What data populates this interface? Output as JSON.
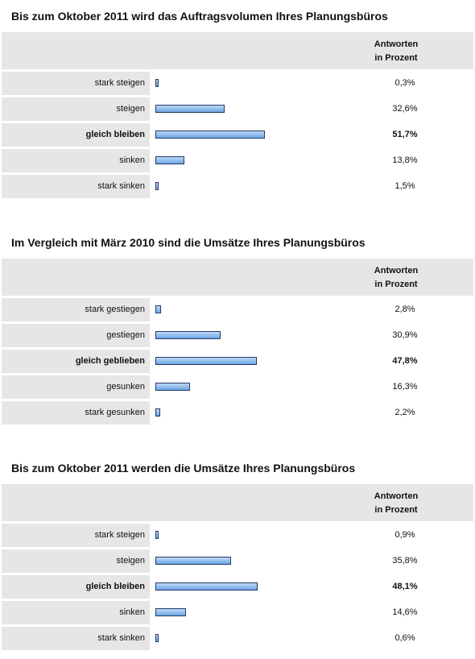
{
  "header_label_line1": "Antworten",
  "header_label_line2": "in Prozent",
  "chart_data": [
    {
      "type": "bar",
      "title": "Bis zum Oktober 2011 wird das Auftragsvolumen Ihres Planungsbüros",
      "categories": [
        "stark steigen",
        "steigen",
        "gleich bleiben",
        "sinken",
        "stark sinken"
      ],
      "values": [
        0.3,
        32.6,
        51.7,
        13.8,
        1.5
      ],
      "value_labels": [
        "0,3%",
        "32,6%",
        "51,7%",
        "13,8%",
        "1,5%"
      ],
      "highlight_index": 2,
      "xlim": [
        0,
        100
      ]
    },
    {
      "type": "bar",
      "title": "Im Vergleich mit März 2010 sind die Umsätze Ihres Planungsbüros",
      "categories": [
        "stark gestiegen",
        "gestiegen",
        "gleich geblieben",
        "gesunken",
        "stark gesunken"
      ],
      "values": [
        2.8,
        30.9,
        47.8,
        16.3,
        2.2
      ],
      "value_labels": [
        "2,8%",
        "30,9%",
        "47,8%",
        "16,3%",
        "2,2%"
      ],
      "highlight_index": 2,
      "xlim": [
        0,
        100
      ]
    },
    {
      "type": "bar",
      "title": "Bis zum Oktober 2011 werden die Umsätze Ihres Planungsbüros",
      "categories": [
        "stark steigen",
        "steigen",
        "gleich bleiben",
        "sinken",
        "stark sinken"
      ],
      "values": [
        0.9,
        35.8,
        48.1,
        14.6,
        0.6
      ],
      "value_labels": [
        "0,9%",
        "35,8%",
        "48,1%",
        "14,6%",
        "0,6%"
      ],
      "highlight_index": 2,
      "xlim": [
        0,
        100
      ]
    }
  ]
}
